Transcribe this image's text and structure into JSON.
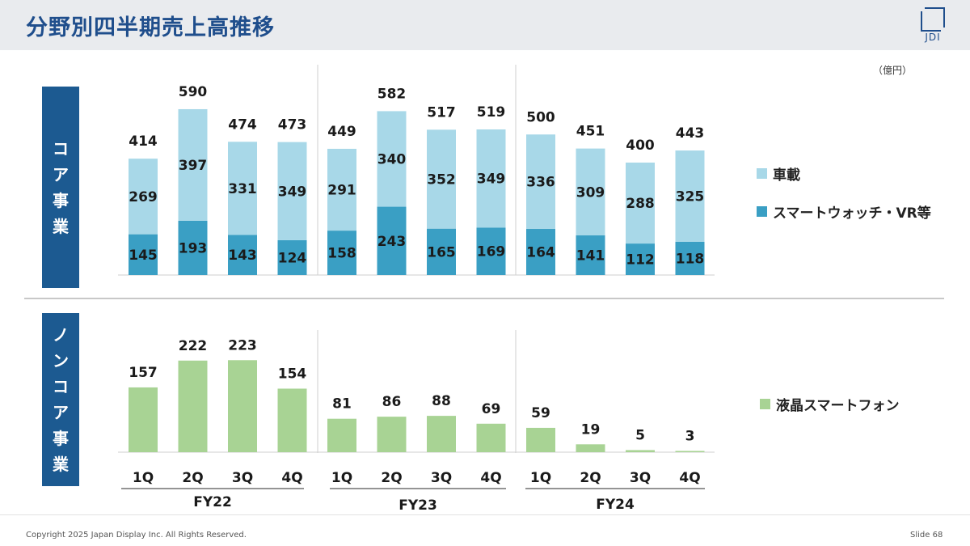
{
  "title": "分野別四半期売上高推移",
  "logo": "JDI",
  "unit_label": "（億円）",
  "segments": {
    "core": [
      "コ",
      "ア",
      "事",
      "業"
    ],
    "noncore": [
      "ノ",
      "ン",
      "コ",
      "ア",
      "事",
      "業"
    ]
  },
  "legend": {
    "auto": "車載",
    "watch": "スマートウォッチ・VR等",
    "lcd": "液晶スマートフォン"
  },
  "colors": {
    "auto": "#a8d8e8",
    "watch": "#3a9fc4",
    "lcd": "#a8d394",
    "segment": "#1c5a91",
    "title": "#1f4e8c"
  },
  "footer": {
    "copyright": "Copyright 2025 Japan Display Inc. All Rights Reserved.",
    "slide": "Slide 68"
  },
  "chart_data": [
    {
      "type": "bar",
      "stacked": true,
      "categories": [
        "1Q",
        "2Q",
        "3Q",
        "4Q",
        "1Q",
        "2Q",
        "3Q",
        "4Q",
        "1Q",
        "2Q",
        "3Q",
        "4Q"
      ],
      "groups": [
        "FY22",
        "FY23",
        "FY24"
      ],
      "series": [
        {
          "name": "スマートウォッチ・VR等",
          "values": [
            145,
            193,
            143,
            124,
            158,
            243,
            165,
            169,
            164,
            141,
            112,
            118
          ]
        },
        {
          "name": "車載",
          "values": [
            269,
            397,
            331,
            349,
            291,
            340,
            352,
            349,
            336,
            309,
            288,
            325
          ]
        }
      ],
      "totals": [
        414,
        590,
        474,
        473,
        449,
        582,
        517,
        519,
        500,
        451,
        400,
        443
      ]
    },
    {
      "type": "bar",
      "categories": [
        "1Q",
        "2Q",
        "3Q",
        "4Q",
        "1Q",
        "2Q",
        "3Q",
        "4Q",
        "1Q",
        "2Q",
        "3Q",
        "4Q"
      ],
      "groups": [
        "FY22",
        "FY23",
        "FY24"
      ],
      "series": [
        {
          "name": "液晶スマートフォン",
          "values": [
            157,
            222,
            223,
            154,
            81,
            86,
            88,
            69,
            59,
            19,
            5,
            3
          ]
        }
      ]
    }
  ]
}
